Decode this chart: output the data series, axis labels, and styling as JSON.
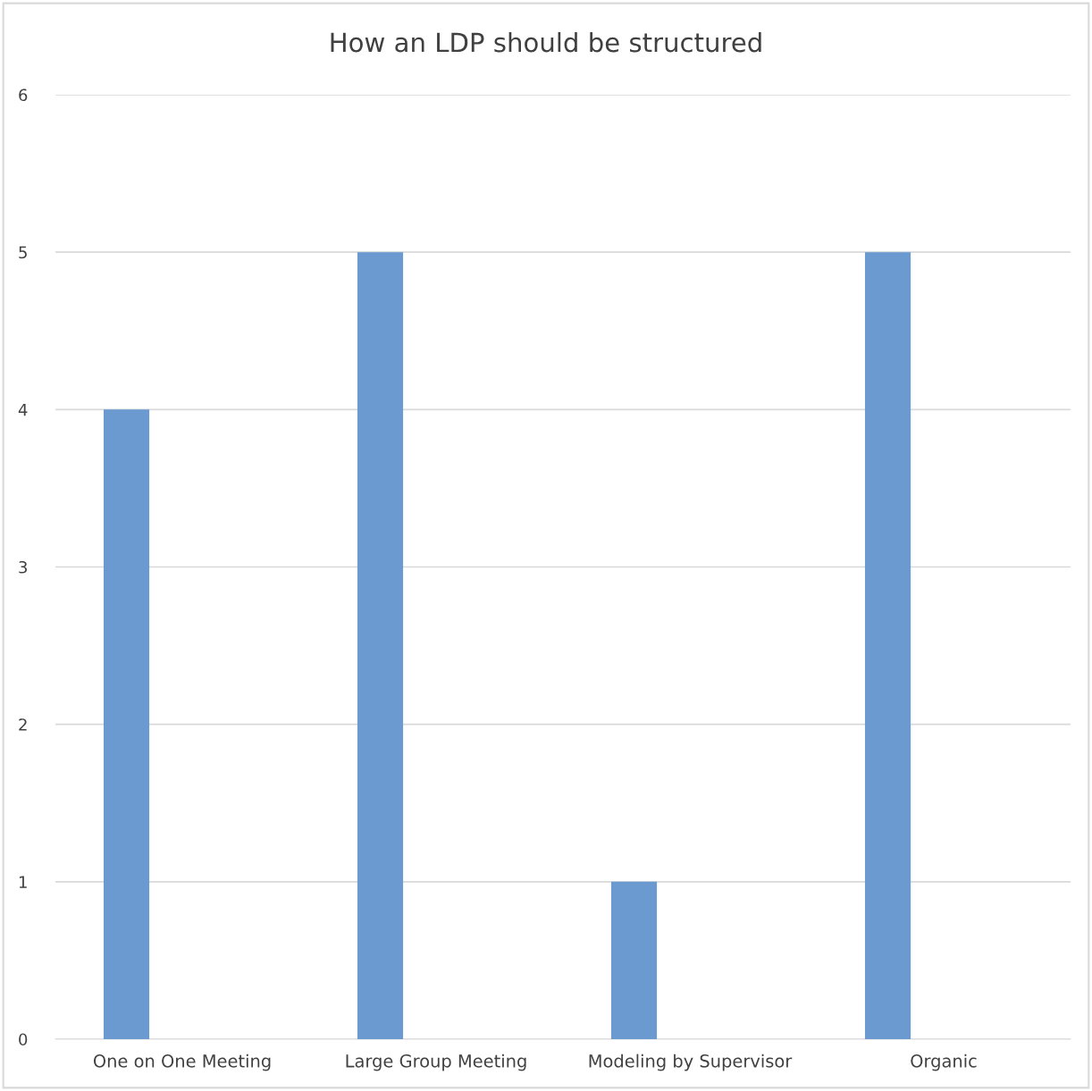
{
  "chart_data": {
    "type": "bar",
    "title": "How an LDP should be structured",
    "categories": [
      "One on One Meeting",
      "Large Group Meeting",
      "Modeling by Supervisor",
      "Organic"
    ],
    "values": [
      4,
      5,
      1,
      5
    ],
    "color": "#6a9ad0",
    "ylim": [
      0,
      6
    ],
    "yticks": [
      0,
      1,
      2,
      3,
      4,
      5,
      6
    ],
    "grid": "y"
  }
}
